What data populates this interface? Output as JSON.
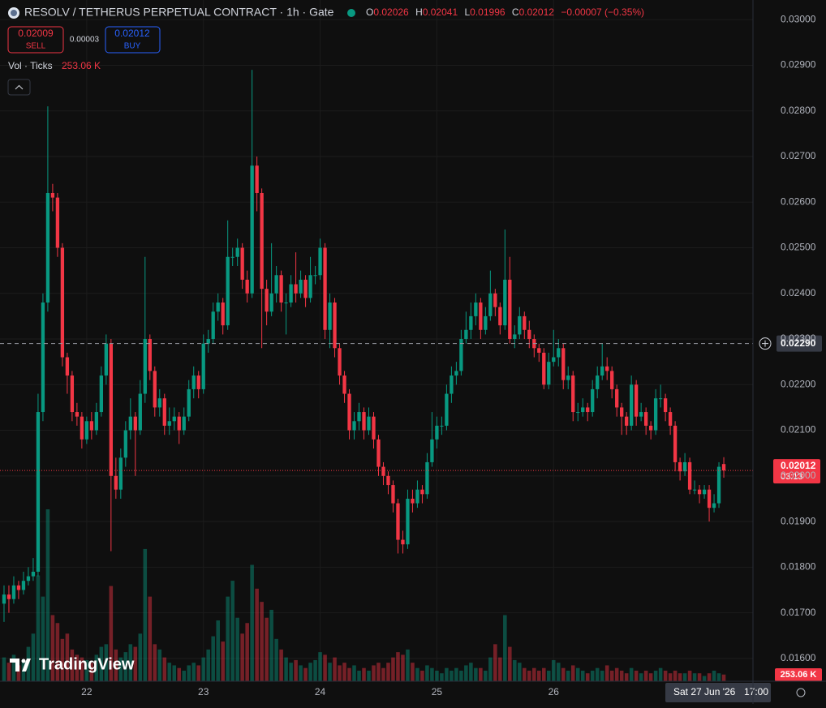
{
  "header": {
    "symbol": "RESOLV / TETHERUS PERPETUAL CONTRACT · 1h · Gate",
    "o": "O",
    "h": "H",
    "l": "L",
    "c": "C",
    "change": "−0.00007 (−0.35%)",
    "sell_price": "0.02009",
    "sell": "SELL",
    "spread": "0.00003",
    "buy_price": "0.02012",
    "buy": "BUY",
    "vol_label": "Vol · Ticks",
    "vol_value": "253.06 K",
    "countdown": "03:13",
    "brand": "TradingView"
  },
  "chart_data": {
    "type": "candlestick",
    "open": [
      0.0172,
      0.0174,
      0.0173,
      0.0176,
      0.0175,
      0.0177,
      0.0178,
      0.0179,
      0.0214,
      0.0238,
      0.0262,
      0.0261,
      0.025,
      0.0226,
      0.0222,
      0.0214,
      0.0213,
      0.0208,
      0.0212,
      0.021,
      0.0214,
      0.0222,
      0.0229,
      0.02,
      0.0197,
      0.0204,
      0.021,
      0.0213,
      0.021,
      0.0218,
      0.023,
      0.0223,
      0.0215,
      0.0217,
      0.0211,
      0.0212,
      0.0213,
      0.021,
      0.0213,
      0.0219,
      0.0222,
      0.0219,
      0.0229,
      0.023,
      0.0236,
      0.0238,
      0.0233,
      0.0248,
      0.0248,
      0.025,
      0.0243,
      0.024,
      0.0268,
      0.0262,
      0.0241,
      0.0236,
      0.024,
      0.0244,
      0.0238,
      0.0238,
      0.0242,
      0.024,
      0.0243,
      0.0239,
      0.0244,
      0.0244,
      0.025,
      0.0232,
      0.0238,
      0.0228,
      0.0222,
      0.0218,
      0.021,
      0.0212,
      0.0214,
      0.021,
      0.0213,
      0.0208,
      0.0202,
      0.02,
      0.0198,
      0.0194,
      0.0186,
      0.0185,
      0.0195,
      0.0194,
      0.0197,
      0.0196,
      0.0203,
      0.0208,
      0.0211,
      0.0211,
      0.0218,
      0.0222,
      0.0223,
      0.023,
      0.0232,
      0.0235,
      0.0238,
      0.0232,
      0.0235,
      0.024,
      0.0237,
      0.0233,
      0.0243,
      0.023,
      0.0231,
      0.0235,
      0.0232,
      0.023,
      0.0228,
      0.0227,
      0.022,
      0.0225,
      0.0226,
      0.0228,
      0.0221,
      0.0222,
      0.0214,
      0.0214,
      0.0215,
      0.0214,
      0.0219,
      0.0222,
      0.0224,
      0.0223,
      0.0219,
      0.0215,
      0.0213,
      0.0211,
      0.022,
      0.0213,
      0.0214,
      0.0211,
      0.021,
      0.0217,
      0.0217,
      0.0214,
      0.0211,
      0.0203,
      0.0201,
      0.0203,
      0.0197,
      0.0197,
      0.0196,
      0.0197,
      0.0193,
      0.0194,
      0.02026
    ],
    "high": [
      0.0176,
      0.0176,
      0.0178,
      0.0177,
      0.0179,
      0.018,
      0.0182,
      0.0218,
      0.024,
      0.0281,
      0.0264,
      0.0262,
      0.0251,
      0.0227,
      0.0223,
      0.0216,
      0.0214,
      0.0213,
      0.0214,
      0.0216,
      0.0224,
      0.0231,
      0.023,
      0.0204,
      0.0206,
      0.0212,
      0.0217,
      0.0214,
      0.0221,
      0.0248,
      0.0231,
      0.0224,
      0.0219,
      0.0218,
      0.0215,
      0.0215,
      0.0214,
      0.0215,
      0.0221,
      0.0224,
      0.0223,
      0.0231,
      0.0232,
      0.0238,
      0.024,
      0.0239,
      0.0256,
      0.025,
      0.0252,
      0.0251,
      0.0245,
      0.0289,
      0.027,
      0.0263,
      0.0243,
      0.0251,
      0.0246,
      0.0245,
      0.024,
      0.0244,
      0.0249,
      0.0245,
      0.0244,
      0.0248,
      0.0246,
      0.0252,
      0.0251,
      0.024,
      0.0239,
      0.0229,
      0.0223,
      0.0219,
      0.0214,
      0.0216,
      0.0215,
      0.0215,
      0.0214,
      0.0209,
      0.0203,
      0.0201,
      0.0199,
      0.0195,
      0.0188,
      0.0197,
      0.0197,
      0.0199,
      0.0198,
      0.0205,
      0.0214,
      0.0213,
      0.0213,
      0.022,
      0.0224,
      0.0225,
      0.0232,
      0.0236,
      0.0238,
      0.024,
      0.0239,
      0.0237,
      0.0245,
      0.0241,
      0.0238,
      0.0254,
      0.0248,
      0.0233,
      0.0237,
      0.0236,
      0.0234,
      0.0231,
      0.0229,
      0.0228,
      0.0227,
      0.0232,
      0.023,
      0.0229,
      0.0224,
      0.0223,
      0.0216,
      0.0217,
      0.0216,
      0.0221,
      0.0224,
      0.0229,
      0.0226,
      0.0224,
      0.022,
      0.0216,
      0.0214,
      0.0222,
      0.0221,
      0.0216,
      0.0215,
      0.0212,
      0.0219,
      0.022,
      0.0218,
      0.0215,
      0.0212,
      0.0204,
      0.0205,
      0.0204,
      0.0199,
      0.0198,
      0.0198,
      0.0198,
      0.0196,
      0.0203,
      0.02041
    ],
    "low": [
      0.0168,
      0.017,
      0.0172,
      0.0173,
      0.0174,
      0.0176,
      0.0177,
      0.0178,
      0.0212,
      0.0236,
      0.0258,
      0.0248,
      0.0224,
      0.0218,
      0.0212,
      0.0211,
      0.0206,
      0.0207,
      0.0208,
      0.0209,
      0.0213,
      0.022,
      0.01835,
      0.0195,
      0.0195,
      0.0202,
      0.0208,
      0.02,
      0.0209,
      0.0216,
      0.0221,
      0.0213,
      0.0213,
      0.0209,
      0.0209,
      0.021,
      0.0207,
      0.0209,
      0.0212,
      0.0217,
      0.0217,
      0.0218,
      0.0227,
      0.0229,
      0.0234,
      0.0231,
      0.0232,
      0.0246,
      0.0246,
      0.0241,
      0.0238,
      0.0239,
      0.0258,
      0.0228,
      0.0233,
      0.0235,
      0.0238,
      0.0236,
      0.0231,
      0.0237,
      0.0238,
      0.0239,
      0.0237,
      0.0238,
      0.0242,
      0.0243,
      0.023,
      0.0228,
      0.0226,
      0.022,
      0.0216,
      0.0208,
      0.0208,
      0.021,
      0.0208,
      0.0209,
      0.0206,
      0.02,
      0.0198,
      0.0196,
      0.0192,
      0.0183,
      0.0183,
      0.0184,
      0.0192,
      0.0193,
      0.0194,
      0.0195,
      0.0202,
      0.0206,
      0.0209,
      0.021,
      0.0216,
      0.022,
      0.0222,
      0.0229,
      0.023,
      0.0233,
      0.023,
      0.0231,
      0.0234,
      0.0235,
      0.0231,
      0.0232,
      0.0229,
      0.0228,
      0.023,
      0.023,
      0.0228,
      0.0226,
      0.0225,
      0.0219,
      0.0219,
      0.0224,
      0.0224,
      0.0219,
      0.0219,
      0.0212,
      0.0212,
      0.0213,
      0.0212,
      0.0213,
      0.0217,
      0.0221,
      0.0221,
      0.0217,
      0.0213,
      0.0209,
      0.0209,
      0.021,
      0.0211,
      0.0212,
      0.0209,
      0.0208,
      0.0209,
      0.0215,
      0.0212,
      0.0209,
      0.0201,
      0.0199,
      0.02,
      0.0196,
      0.0196,
      0.0194,
      0.0195,
      0.019,
      0.0192,
      0.0193,
      0.01996
    ],
    "close": [
      0.0174,
      0.0173,
      0.0176,
      0.0175,
      0.0177,
      0.0178,
      0.0179,
      0.0214,
      0.0238,
      0.0262,
      0.0261,
      0.025,
      0.0226,
      0.0222,
      0.0214,
      0.0213,
      0.0208,
      0.0212,
      0.021,
      0.0214,
      0.0222,
      0.0229,
      0.02,
      0.0197,
      0.0204,
      0.021,
      0.0213,
      0.021,
      0.0218,
      0.023,
      0.0223,
      0.0215,
      0.0217,
      0.0211,
      0.0212,
      0.0213,
      0.021,
      0.0213,
      0.0219,
      0.0222,
      0.0219,
      0.0229,
      0.023,
      0.0236,
      0.0238,
      0.0233,
      0.0248,
      0.0248,
      0.025,
      0.0243,
      0.024,
      0.0268,
      0.0262,
      0.0241,
      0.0236,
      0.024,
      0.0244,
      0.0238,
      0.0238,
      0.0242,
      0.024,
      0.0243,
      0.0239,
      0.0244,
      0.0244,
      0.025,
      0.0232,
      0.0238,
      0.0228,
      0.0222,
      0.0218,
      0.021,
      0.0212,
      0.0214,
      0.021,
      0.0213,
      0.0208,
      0.0202,
      0.02,
      0.0198,
      0.0194,
      0.0186,
      0.0185,
      0.0195,
      0.0194,
      0.0197,
      0.0196,
      0.0203,
      0.0208,
      0.0211,
      0.0211,
      0.0218,
      0.0222,
      0.0223,
      0.023,
      0.0232,
      0.0235,
      0.0238,
      0.0232,
      0.0235,
      0.024,
      0.0237,
      0.0233,
      0.0243,
      0.023,
      0.0231,
      0.0235,
      0.0232,
      0.023,
      0.0228,
      0.0227,
      0.022,
      0.0225,
      0.0226,
      0.0228,
      0.0221,
      0.0222,
      0.0214,
      0.0214,
      0.0215,
      0.0214,
      0.0219,
      0.0222,
      0.0224,
      0.0223,
      0.0219,
      0.0215,
      0.0213,
      0.0211,
      0.022,
      0.0213,
      0.0214,
      0.0211,
      0.021,
      0.0217,
      0.0217,
      0.0214,
      0.0211,
      0.0203,
      0.0201,
      0.0203,
      0.0197,
      0.0197,
      0.0196,
      0.0197,
      0.0193,
      0.0194,
      0.0202,
      0.02012
    ],
    "volume": [
      900,
      700,
      1000,
      600,
      800,
      1300,
      1800,
      4000,
      3200,
      6500,
      2500,
      2200,
      1600,
      1800,
      1200,
      1000,
      900,
      800,
      700,
      1000,
      1300,
      1400,
      3600,
      1200,
      900,
      1100,
      1400,
      1300,
      1800,
      5000,
      3200,
      1400,
      1200,
      900,
      700,
      600,
      500,
      400,
      600,
      700,
      600,
      900,
      1200,
      1700,
      2300,
      1500,
      3200,
      3800,
      2400,
      1800,
      2200,
      4400,
      3500,
      3000,
      2400,
      2700,
      1600,
      1200,
      900,
      700,
      800,
      600,
      500,
      700,
      800,
      1100,
      1000,
      700,
      900,
      600,
      700,
      500,
      600,
      400,
      500,
      400,
      600,
      700,
      500,
      700,
      900,
      1100,
      1000,
      1200,
      700,
      500,
      400,
      600,
      500,
      400,
      300,
      500,
      400,
      500,
      400,
      600,
      700,
      500,
      500,
      400,
      900,
      1400,
      900,
      2500,
      1300,
      800,
      700,
      500,
      400,
      500,
      400,
      500,
      400,
      800,
      700,
      500,
      400,
      600,
      500,
      400,
      300,
      400,
      500,
      400,
      600,
      400,
      500,
      400,
      300,
      500,
      400,
      300,
      400,
      300,
      400,
      500,
      400,
      300,
      400,
      300,
      300,
      400,
      300,
      300,
      200,
      300,
      400,
      300,
      253.06
    ],
    "up_color": "#089981",
    "down_color": "#f23645",
    "ylim": [
      0.0155,
      0.03043
    ],
    "yticks": [
      {
        "value": 0.03,
        "label": "0.03000"
      },
      {
        "value": 0.029,
        "label": "0.02900"
      },
      {
        "value": 0.028,
        "label": "0.02800"
      },
      {
        "value": 0.027,
        "label": "0.02700"
      },
      {
        "value": 0.026,
        "label": "0.02600"
      },
      {
        "value": 0.025,
        "label": "0.02500"
      },
      {
        "value": 0.024,
        "label": "0.02400"
      },
      {
        "value": 0.023,
        "label": "0.02300"
      },
      {
        "value": 0.022,
        "label": "0.02200"
      },
      {
        "value": 0.021,
        "label": "0.02100"
      },
      {
        "value": 0.02,
        "label": "0.02000"
      },
      {
        "value": 0.019,
        "label": "0.01900"
      },
      {
        "value": 0.018,
        "label": "0.01800"
      },
      {
        "value": 0.017,
        "label": "0.01700"
      },
      {
        "value": 0.016,
        "label": "0.01600"
      }
    ],
    "xlim": [
      -0.83,
      154
    ],
    "xticks": [
      {
        "value": 17,
        "label": "22"
      },
      {
        "value": 41,
        "label": "23"
      },
      {
        "value": 65,
        "label": "24"
      },
      {
        "value": 89,
        "label": "25"
      },
      {
        "value": 113,
        "label": "26"
      }
    ],
    "crosshair": {
      "y": {
        "value": 0.0229,
        "label": "0.02290"
      },
      "x": {
        "value": 154,
        "date": "Sat 27 Jun '26",
        "time": "17:00"
      }
    },
    "grid": true
  }
}
